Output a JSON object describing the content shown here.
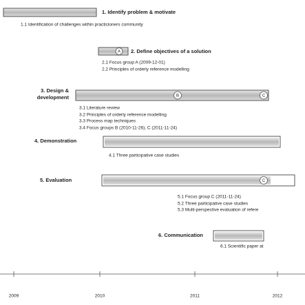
{
  "phases": [
    {
      "title": "1. Identify problem & motivate",
      "items": [
        "1.1 Identification of challenges within practicioners community"
      ]
    },
    {
      "title": "2. Define objectives of a solution",
      "milestones": [
        "A"
      ],
      "items": [
        "2.1 Focus group A (2009-12-01)",
        "2.2 Principles of orderly reference modelling"
      ]
    },
    {
      "title": [
        "3. Design &",
        "development"
      ],
      "milestones": [
        "B",
        "C"
      ],
      "items": [
        "3.1 Literature review",
        "3.2 Principles of orderly reference modelling",
        "3.3 Process map techniques",
        "3.4 Focus groups B (2010-11-26), C (2011-11-24)"
      ]
    },
    {
      "title": "4. Demonstration",
      "items": [
        "4.1 Three participative case studies"
      ]
    },
    {
      "title": "5. Evaluation",
      "milestones": [
        "C"
      ],
      "items": [
        "5.1 Focus group C (2011-11-24)",
        "5.2 Three participative case studies",
        "5.3 Multi-perspective evaluation of refere"
      ]
    },
    {
      "title": "6. Communication",
      "items": [
        "6.1 Scientific paper at"
      ]
    }
  ],
  "timeline": [
    "2009",
    "2010",
    "2011",
    "2012"
  ]
}
